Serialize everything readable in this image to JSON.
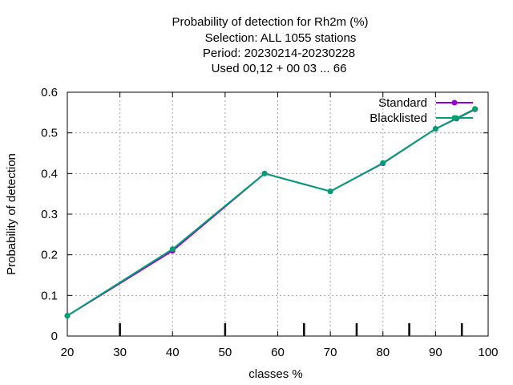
{
  "chart_data": {
    "type": "line",
    "title_lines": [
      "Probability of detection  for Rh2m (%)",
      "Selection: ALL   1055 stations",
      "Period: 20230214-20230228",
      "Used  00,12  + 00 03 ... 66"
    ],
    "xlabel": "classes %",
    "ylabel": "Probability of detection",
    "xlim": [
      20,
      100
    ],
    "ylim": [
      0,
      0.6
    ],
    "xticks": [
      20,
      30,
      40,
      50,
      60,
      70,
      80,
      90,
      100
    ],
    "yticks": [
      0,
      0.1,
      0.2,
      0.3,
      0.4,
      0.5,
      0.6
    ],
    "xtick_labels": [
      "20",
      "30",
      "40",
      "50",
      "60",
      "70",
      "80",
      "90",
      "100"
    ],
    "ytick_labels": [
      "0",
      "0.1",
      "0.2",
      "0.3",
      "0.4",
      "0.5",
      "0.6"
    ],
    "class_marks": [
      30,
      50,
      65,
      75,
      85,
      95
    ],
    "grid": true,
    "legend_position": "top-right",
    "series": [
      {
        "name": "Standard",
        "color": "#9400d3",
        "x": [
          20,
          40,
          57.5,
          70,
          80,
          90,
          94,
          97.5
        ],
        "y": [
          0.05,
          0.21,
          0.4,
          0.356,
          0.425,
          0.51,
          0.535,
          0.558
        ]
      },
      {
        "name": "Blacklisted",
        "color": "#009e73",
        "x": [
          20,
          40,
          57.5,
          70,
          80,
          90,
          94,
          97.5
        ],
        "y": [
          0.05,
          0.214,
          0.4,
          0.356,
          0.426,
          0.51,
          0.536,
          0.559
        ]
      }
    ]
  }
}
